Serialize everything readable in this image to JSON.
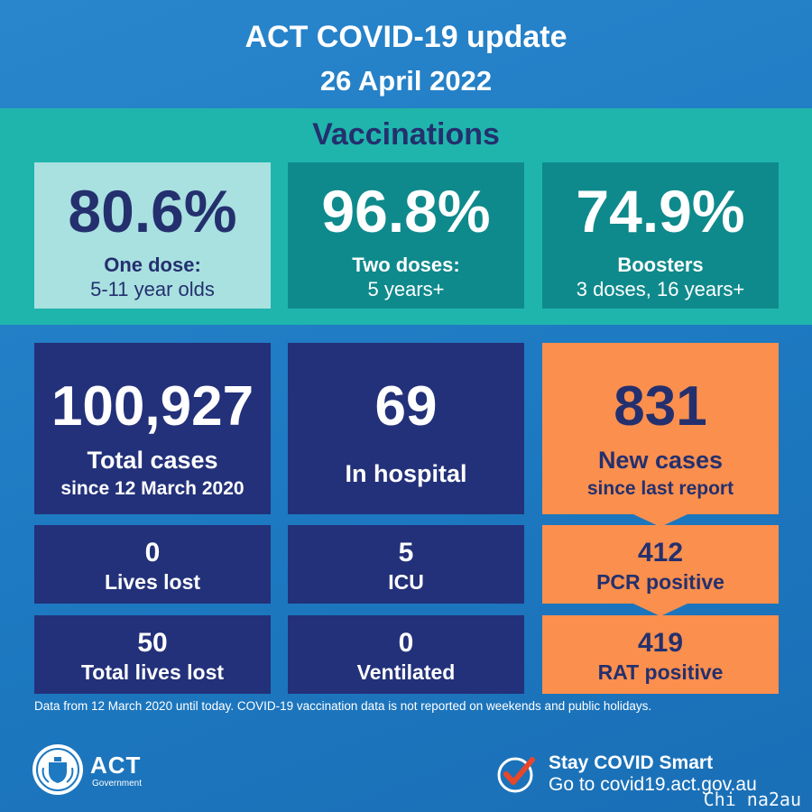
{
  "header": {
    "title": "ACT COVID-19 update",
    "date": "26 April 2022"
  },
  "vaccinations": {
    "title": "Vaccinations",
    "boxes": [
      {
        "value": "80.6%",
        "line1": "One dose:",
        "line2": "5-11 year olds"
      },
      {
        "value": "96.8%",
        "line1": "Two doses:",
        "line2": "5 years+"
      },
      {
        "value": "74.9%",
        "line1": "Boosters",
        "line2": "3 doses, 16 years+"
      }
    ]
  },
  "stats": {
    "total_cases": {
      "value": "100,927",
      "line1": "Total cases",
      "line2": "since 12 March 2020"
    },
    "in_hospital": {
      "value": "69",
      "label": "In hospital"
    },
    "new_cases": {
      "value": "831",
      "line1": "New cases",
      "line2": "since last report"
    },
    "lives_lost": {
      "value": "0",
      "label": "Lives lost"
    },
    "icu": {
      "value": "5",
      "label": "ICU"
    },
    "pcr_positive": {
      "value": "412",
      "label": "PCR positive"
    },
    "total_lives_lost": {
      "value": "50",
      "label": "Total lives lost"
    },
    "ventilated": {
      "value": "0",
      "label": "Ventilated"
    },
    "rat_positive": {
      "value": "419",
      "label": "RAT positive"
    }
  },
  "footnote": "Data from 12 March 2020 until today.  COVID-19 vaccination data is not reported on weekends and public holidays.",
  "logo": {
    "name": "ACT",
    "sub": "Government",
    "icon": "act-crest-icon"
  },
  "stay_smart": {
    "line1": "Stay COVID Smart",
    "line2": "Go to covid19.act.gov.au",
    "icon": "check-icon"
  },
  "watermark": "Chi na2au",
  "colors": {
    "background": "#1d79c1",
    "teal_band": "#1fb5ad",
    "light_teal": "#a9e0e0",
    "dark_teal": "#0f8a8c",
    "navy": "#23317a",
    "orange": "#fb8f4d",
    "check_red": "#e8472b"
  }
}
